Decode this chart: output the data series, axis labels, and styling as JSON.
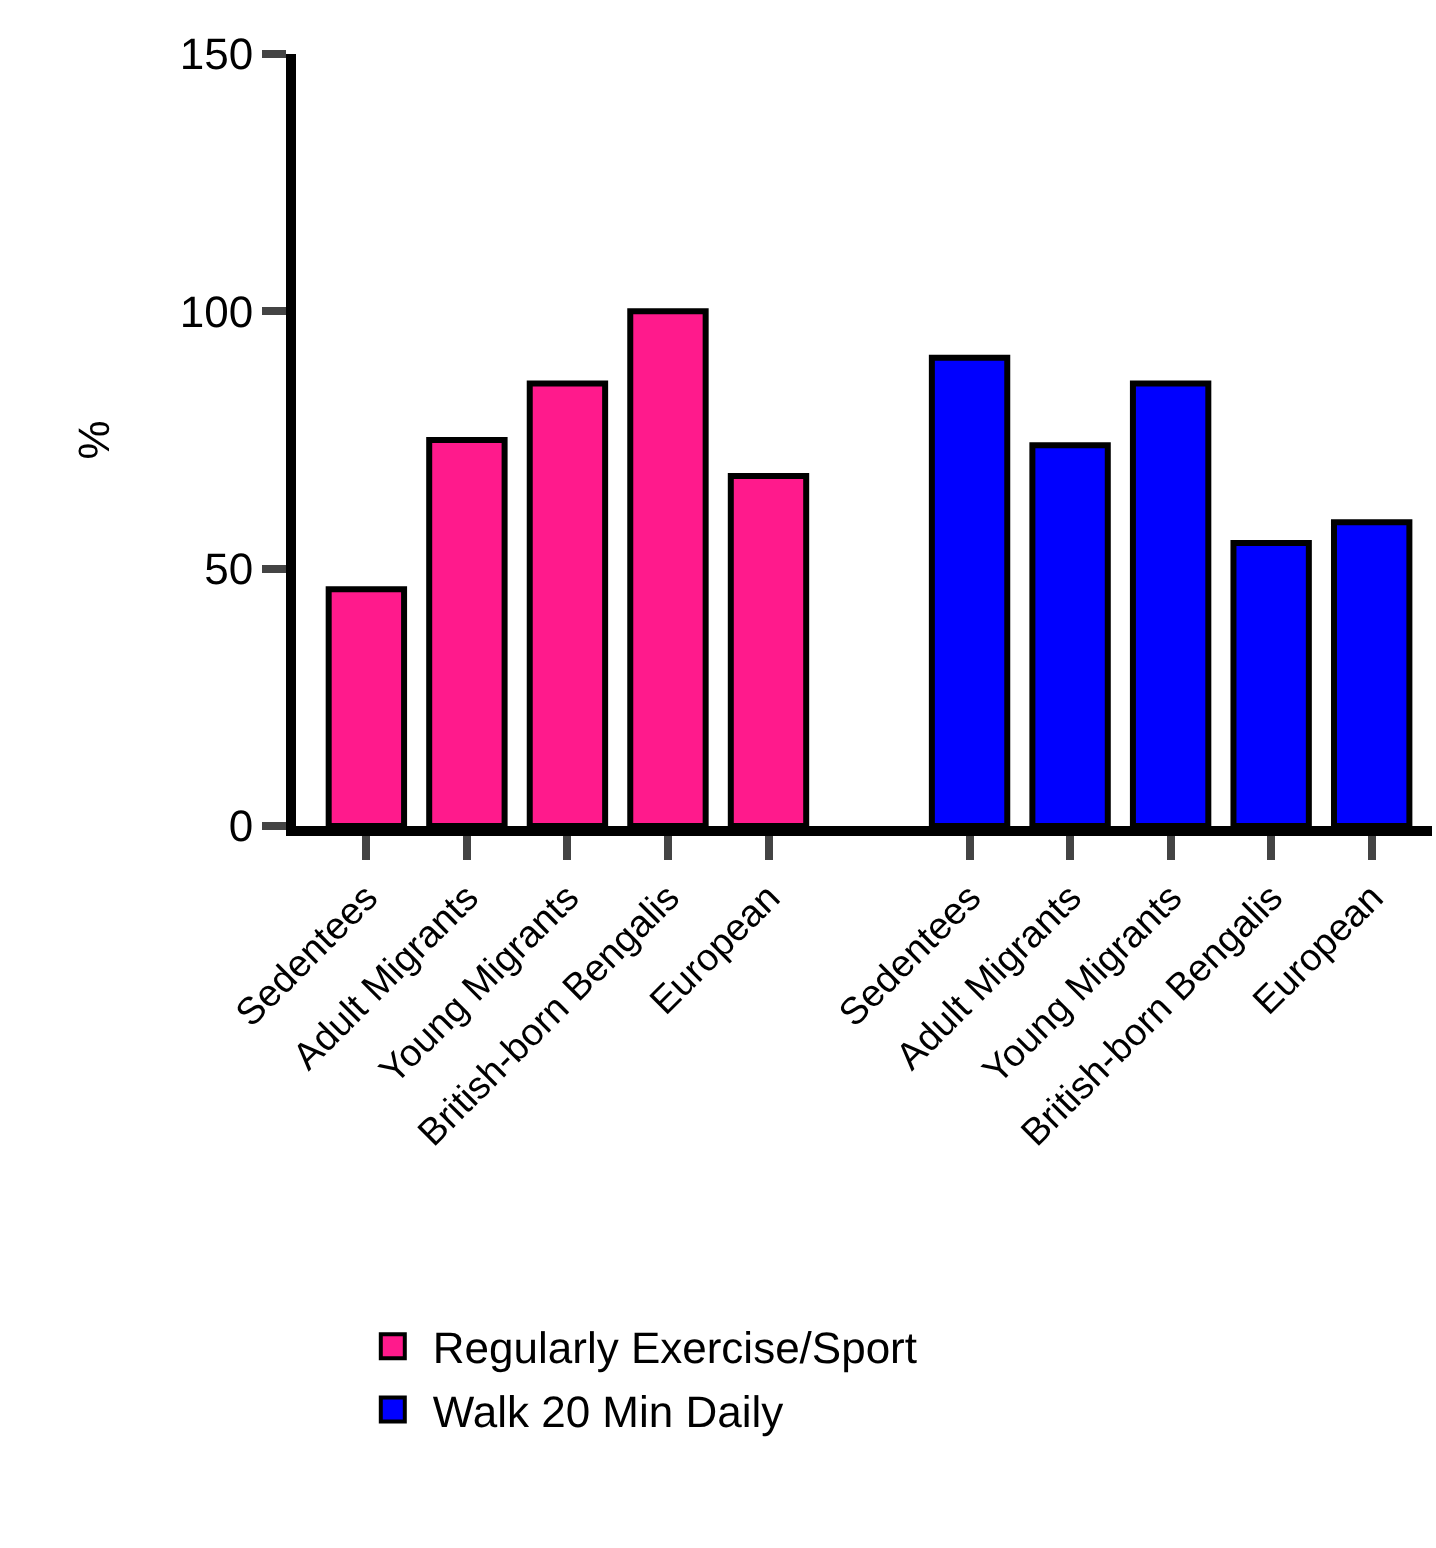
{
  "chart_data": {
    "type": "bar",
    "ylabel": "%",
    "categories": [
      "Sedentees",
      "Adult Migrants",
      "Young Migrants",
      "British-born Bengalis",
      "European",
      null,
      "Sedentees",
      "Adult Migrants",
      "Young Migrants",
      "British-born Bengalis",
      "European"
    ],
    "series": [
      {
        "name": "Regularly Exercise/Sport",
        "color": "#ff1a8c",
        "values": [
          46,
          75,
          86,
          100,
          68,
          null,
          null,
          null,
          null,
          null,
          null
        ]
      },
      {
        "name": "Walk 20 Min Daily",
        "color": "#0000ff",
        "values": [
          null,
          null,
          null,
          null,
          null,
          null,
          91,
          74,
          86,
          55,
          59
        ]
      }
    ],
    "ylim": [
      0,
      150
    ],
    "yticks": [
      0,
      50,
      100,
      150
    ],
    "legend": "bottom"
  }
}
